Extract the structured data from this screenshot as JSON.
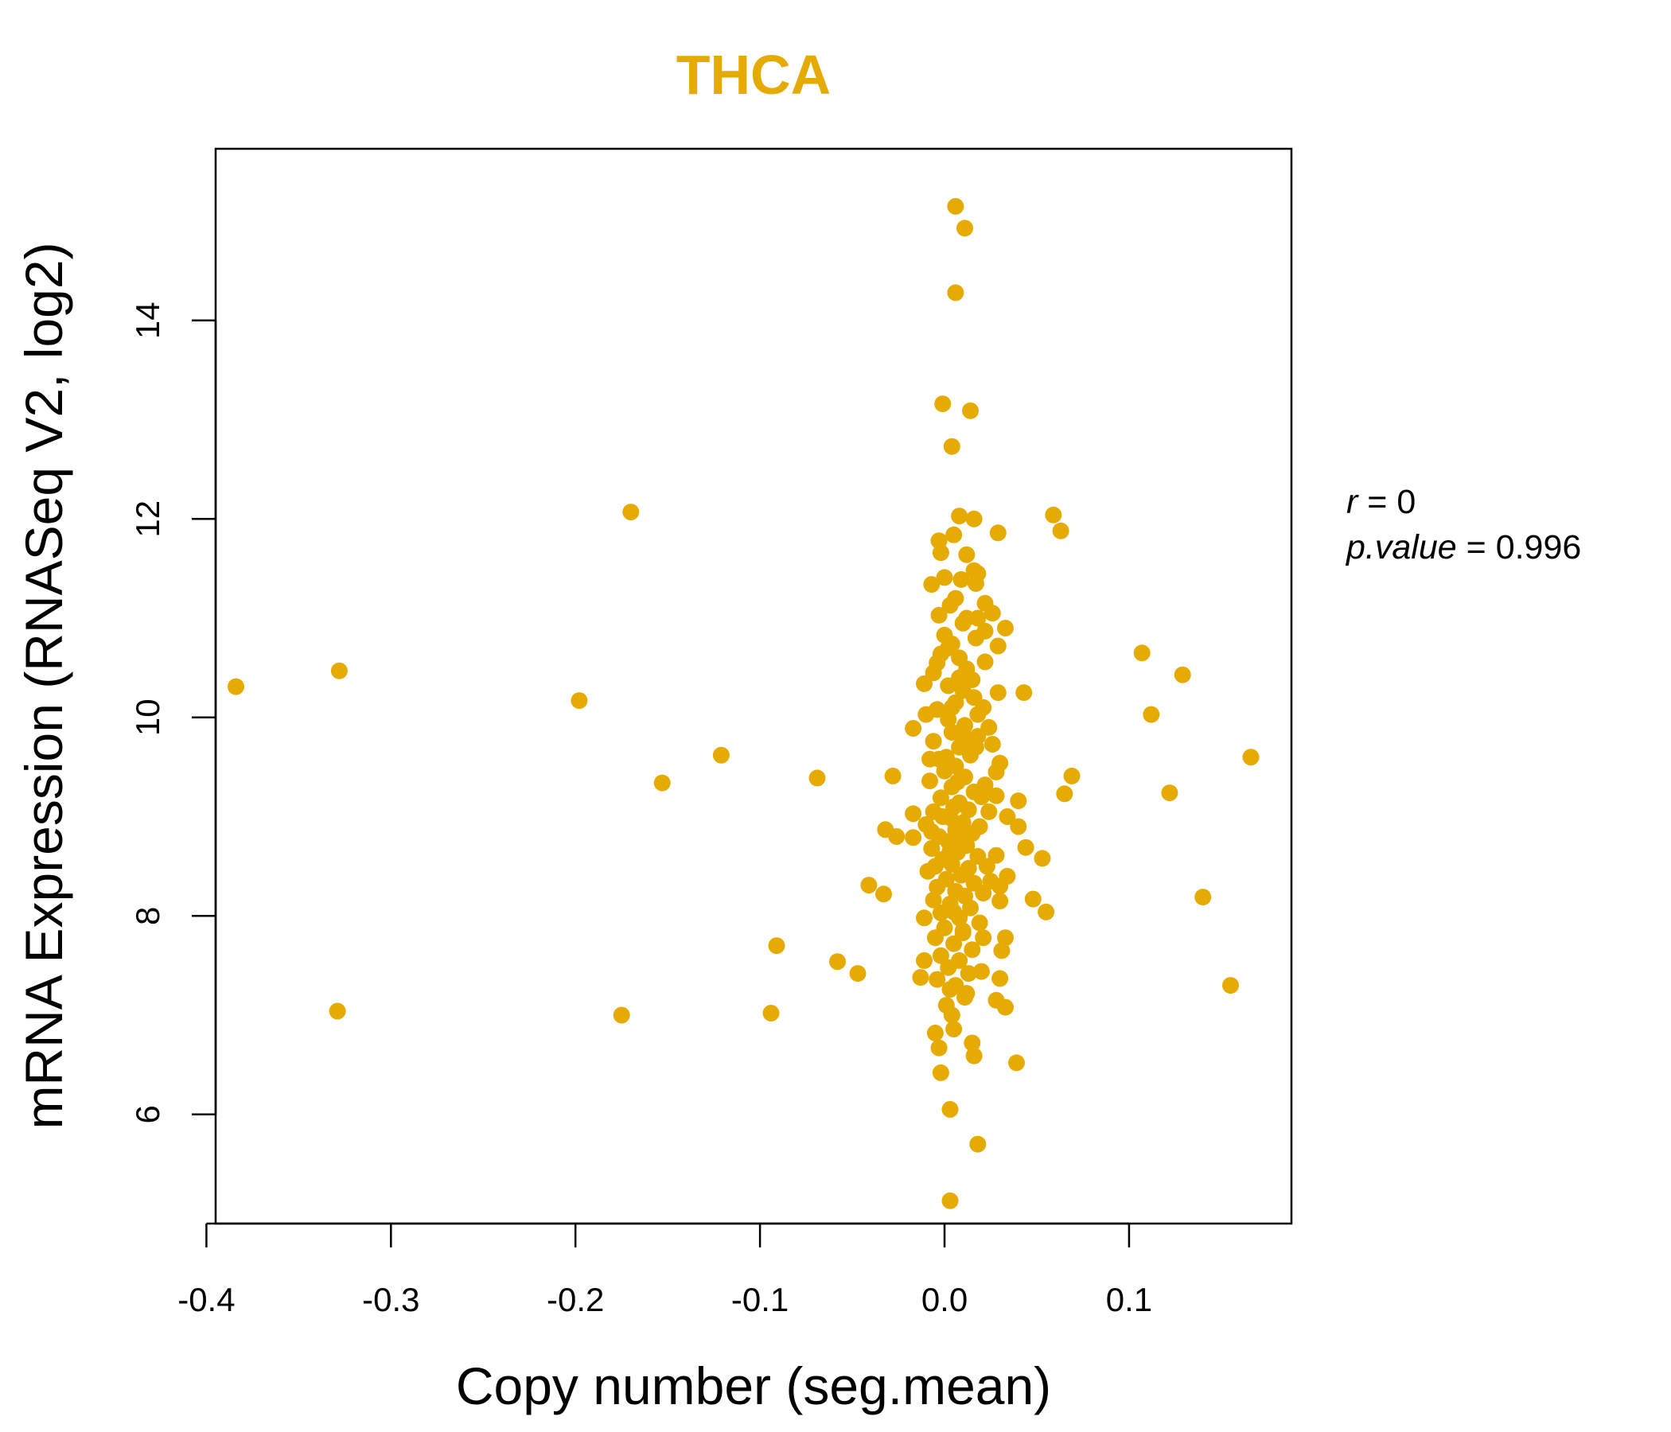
{
  "chart_data": {
    "type": "scatter",
    "title": "THCA",
    "xlabel": "Copy number (seg.mean)",
    "ylabel": "mRNA Expression (RNASeq V2, log2)",
    "xlim": [
      -0.395,
      0.188
    ],
    "ylim": [
      4.9,
      15.73
    ],
    "x_ticks": [
      -0.4,
      -0.3,
      -0.2,
      -0.1,
      0.0,
      0.1
    ],
    "x_tick_labels": [
      "-0.4",
      "-0.3",
      "-0.2",
      "-0.1",
      "0.0",
      "0.1"
    ],
    "y_ticks": [
      6,
      8,
      10,
      12,
      14
    ],
    "y_tick_labels": [
      "6",
      "8",
      "10",
      "12",
      "14"
    ],
    "grid": false,
    "annotations": {
      "r_label": "r",
      "r_eq": " = ",
      "r_value": "0",
      "p_label": "p.value",
      "p_eq": " = ",
      "p_value": "0.996"
    },
    "colors": {
      "point": "#E6AB02",
      "title": "#E6AB02"
    },
    "points": [
      [
        0.006,
        15.15
      ],
      [
        0.011,
        14.93
      ],
      [
        0.006,
        14.28
      ],
      [
        -0.001,
        13.16
      ],
      [
        0.014,
        13.09
      ],
      [
        0.004,
        12.73
      ],
      [
        -0.17,
        12.07
      ],
      [
        0.008,
        12.03
      ],
      [
        0.016,
        12.0
      ],
      [
        0.059,
        12.04
      ],
      [
        0.063,
        11.88
      ],
      [
        0.029,
        11.86
      ],
      [
        -0.328,
        10.47
      ],
      [
        -0.384,
        10.31
      ],
      [
        -0.198,
        10.17
      ],
      [
        0.043,
        10.25
      ],
      [
        0.107,
        10.65
      ],
      [
        0.129,
        10.43
      ],
      [
        0.112,
        10.03
      ],
      [
        0.166,
        9.6
      ],
      [
        -0.121,
        9.62
      ],
      [
        -0.153,
        9.34
      ],
      [
        -0.069,
        9.39
      ],
      [
        -0.028,
        9.41
      ],
      [
        0.069,
        9.41
      ],
      [
        0.065,
        9.23
      ],
      [
        0.122,
        9.24
      ],
      [
        -0.032,
        8.87
      ],
      [
        -0.026,
        8.8
      ],
      [
        -0.017,
        8.79
      ],
      [
        -0.041,
        8.31
      ],
      [
        -0.033,
        8.22
      ],
      [
        0.053,
        8.58
      ],
      [
        0.048,
        8.17
      ],
      [
        0.055,
        8.04
      ],
      [
        0.14,
        8.19
      ],
      [
        -0.091,
        7.7
      ],
      [
        -0.058,
        7.54
      ],
      [
        -0.047,
        7.42
      ],
      [
        -0.329,
        7.04
      ],
      [
        -0.175,
        7.0
      ],
      [
        -0.094,
        7.02
      ],
      [
        0.155,
        7.3
      ],
      [
        0.039,
        6.52
      ],
      [
        0.003,
        6.05
      ],
      [
        0.018,
        5.7
      ],
      [
        0.003,
        5.13
      ],
      [
        -0.002,
        6.42
      ],
      [
        0.016,
        6.59
      ],
      [
        0.015,
        6.72
      ],
      [
        -0.003,
        6.67
      ],
      [
        -0.005,
        6.82
      ],
      [
        0.005,
        6.86
      ],
      [
        0.004,
        7.0
      ],
      [
        0.033,
        7.08
      ],
      [
        0.028,
        7.15
      ],
      [
        0.012,
        7.22
      ],
      [
        0.003,
        7.26
      ],
      [
        -0.013,
        7.38
      ],
      [
        0.03,
        7.37
      ],
      [
        0.02,
        7.44
      ],
      [
        -0.011,
        7.55
      ],
      [
        0.031,
        7.65
      ],
      [
        0.033,
        7.78
      ],
      [
        0.021,
        7.78
      ],
      [
        0.01,
        7.85
      ],
      [
        -0.011,
        7.98
      ],
      [
        0.005,
        8.04
      ],
      [
        0.03,
        8.15
      ],
      [
        0.021,
        8.23
      ],
      [
        0.03,
        8.3
      ],
      [
        0.034,
        8.4
      ],
      [
        -0.005,
        8.5
      ],
      [
        0.028,
        8.61
      ],
      [
        0.044,
        8.69
      ],
      [
        0.009,
        8.74
      ],
      [
        0.04,
        8.9
      ],
      [
        0.034,
        9.0
      ],
      [
        -0.017,
        9.03
      ],
      [
        0.04,
        9.16
      ],
      [
        0.028,
        9.21
      ],
      [
        0.022,
        9.32
      ],
      [
        0.028,
        9.45
      ],
      [
        0.03,
        9.54
      ],
      [
        0.026,
        9.73
      ],
      [
        0.018,
        9.81
      ],
      [
        -0.017,
        9.89
      ],
      [
        0.024,
        9.9
      ],
      [
        0.018,
        10.03
      ],
      [
        -0.01,
        10.03
      ],
      [
        0.016,
        10.2
      ],
      [
        -0.011,
        10.34
      ],
      [
        0.015,
        10.38
      ],
      [
        0.029,
        10.25
      ],
      [
        0.029,
        10.72
      ],
      [
        0.033,
        10.9
      ],
      [
        0.022,
        10.56
      ],
      [
        0.017,
        10.8
      ],
      [
        0.022,
        10.87
      ],
      [
        0.026,
        11.05
      ],
      [
        0.022,
        11.15
      ],
      [
        0.018,
        11.0
      ],
      [
        0.017,
        11.35
      ],
      [
        0.016,
        11.48
      ],
      [
        0.012,
        11.64
      ],
      [
        0.005,
        11.84
      ],
      [
        -0.003,
        11.78
      ],
      [
        -0.002,
        11.66
      ],
      [
        -0.007,
        11.34
      ],
      [
        0.0,
        11.41
      ],
      [
        0.009,
        11.39
      ],
      [
        0.003,
        11.13
      ],
      [
        -0.003,
        11.03
      ],
      [
        0.01,
        10.95
      ],
      [
        0.0,
        10.83
      ],
      [
        0.004,
        10.74
      ],
      [
        -0.002,
        10.64
      ],
      [
        0.008,
        10.6
      ],
      [
        0.012,
        10.49
      ],
      [
        -0.006,
        10.45
      ],
      [
        0.002,
        10.32
      ],
      [
        0.01,
        10.27
      ],
      [
        0.006,
        10.15
      ],
      [
        -0.004,
        10.08
      ],
      [
        0.002,
        9.98
      ],
      [
        0.011,
        9.92
      ],
      [
        0.004,
        9.85
      ],
      [
        -0.006,
        9.76
      ],
      [
        0.008,
        9.7
      ],
      [
        0.014,
        9.62
      ],
      [
        -0.003,
        9.58
      ],
      [
        0.006,
        9.51
      ],
      [
        0.0,
        9.46
      ],
      [
        0.011,
        9.4
      ],
      [
        -0.008,
        9.36
      ],
      [
        0.004,
        9.3
      ],
      [
        0.016,
        9.25
      ],
      [
        -0.002,
        9.19
      ],
      [
        0.008,
        9.14
      ],
      [
        0.013,
        9.07
      ],
      [
        -0.006,
        9.05
      ],
      [
        0.003,
        8.99
      ],
      [
        0.01,
        8.94
      ],
      [
        -0.01,
        8.92
      ],
      [
        0.006,
        8.87
      ],
      [
        0.015,
        8.83
      ],
      [
        -0.003,
        8.8
      ],
      [
        0.002,
        8.75
      ],
      [
        0.012,
        8.71
      ],
      [
        -0.007,
        8.68
      ],
      [
        0.007,
        8.64
      ],
      [
        0.018,
        8.6
      ],
      [
        -0.001,
        8.57
      ],
      [
        0.004,
        8.52
      ],
      [
        0.013,
        8.48
      ],
      [
        -0.009,
        8.45
      ],
      [
        0.009,
        8.41
      ],
      [
        0.001,
        8.37
      ],
      [
        0.016,
        8.33
      ],
      [
        -0.004,
        8.29
      ],
      [
        0.006,
        8.25
      ],
      [
        0.011,
        8.2
      ],
      [
        -0.006,
        8.16
      ],
      [
        0.003,
        8.12
      ],
      [
        0.014,
        8.08
      ],
      [
        -0.002,
        8.03
      ],
      [
        0.008,
        7.98
      ],
      [
        0.019,
        7.93
      ],
      [
        0.0,
        7.88
      ],
      [
        0.01,
        7.83
      ],
      [
        -0.005,
        7.78
      ],
      [
        0.005,
        7.72
      ],
      [
        0.015,
        7.66
      ],
      [
        -0.002,
        7.6
      ],
      [
        0.008,
        7.55
      ],
      [
        0.002,
        7.48
      ],
      [
        0.013,
        7.42
      ],
      [
        -0.004,
        7.36
      ],
      [
        0.006,
        7.3
      ],
      [
        0.011,
        7.18
      ],
      [
        0.001,
        7.1
      ],
      [
        -0.001,
        9.0
      ],
      [
        0.005,
        9.1
      ],
      [
        0.009,
        8.85
      ],
      [
        0.003,
        8.65
      ],
      [
        0.007,
        9.35
      ],
      [
        0.001,
        9.6
      ],
      [
        0.011,
        9.8
      ],
      [
        0.004,
        10.1
      ],
      [
        0.008,
        10.4
      ],
      [
        0.002,
        10.7
      ],
      [
        0.006,
        11.2
      ],
      [
        -0.008,
        9.58
      ],
      [
        0.02,
        9.2
      ],
      [
        0.023,
        8.5
      ],
      [
        0.019,
        8.9
      ],
      [
        -0.007,
        8.85
      ],
      [
        0.017,
        9.7
      ],
      [
        0.021,
        10.1
      ],
      [
        -0.004,
        10.55
      ],
      [
        0.012,
        11.0
      ],
      [
        0.018,
        11.45
      ],
      [
        0.024,
        9.05
      ],
      [
        0.025,
        8.35
      ]
    ]
  }
}
